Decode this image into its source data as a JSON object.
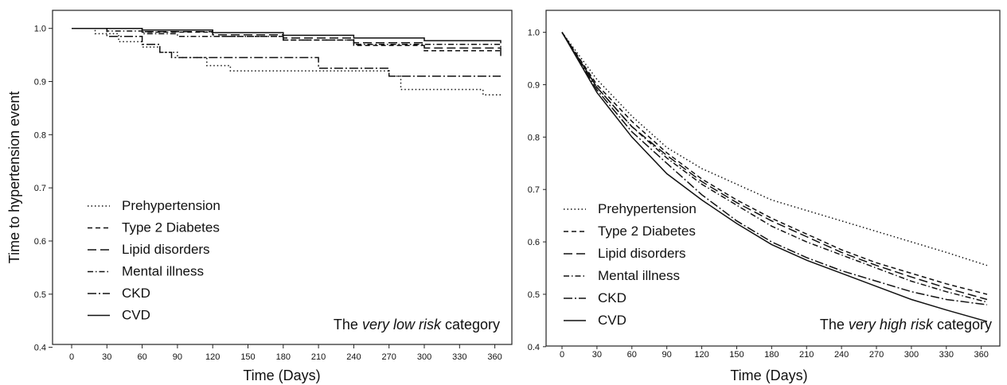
{
  "chart_data": [
    {
      "type": "line",
      "panel": "left",
      "ylabel": "Time to hypertension event",
      "xlabel": "Time (Days)",
      "xlim": [
        0,
        365
      ],
      "ylim": [
        0.38,
        1.01
      ],
      "x_ticks": [
        0,
        30,
        60,
        90,
        120,
        150,
        180,
        210,
        240,
        270,
        300,
        330,
        360
      ],
      "y_ticks": [
        0.4,
        0.5,
        0.6,
        0.7,
        0.8,
        0.9,
        1.0
      ],
      "y_tick_labels": [
        "0.4",
        "0.5",
        "0.6",
        "0.7",
        "0.8",
        "0.9",
        "1.0"
      ],
      "step": true,
      "legend_position": "bottom-left",
      "category_prefix": "The ",
      "category_emph": "very low risk",
      "category_suffix": " category",
      "series": [
        {
          "name": "Prehypertension",
          "dash": "dotted",
          "x": [
            0,
            20,
            40,
            60,
            75,
            90,
            115,
            135,
            270,
            280,
            350,
            365
          ],
          "y": [
            1.0,
            0.99,
            0.975,
            0.965,
            0.955,
            0.945,
            0.93,
            0.92,
            0.91,
            0.885,
            0.875,
            0.875
          ]
        },
        {
          "name": "Type 2 Diabetes",
          "dash": "short-dash",
          "x": [
            0,
            60,
            120,
            180,
            240,
            300,
            365
          ],
          "y": [
            1.0,
            0.993,
            0.985,
            0.978,
            0.968,
            0.958,
            0.948
          ]
        },
        {
          "name": "Lipid disorders",
          "dash": "long-dash",
          "x": [
            0,
            60,
            120,
            180,
            240,
            300,
            365
          ],
          "y": [
            1.0,
            0.994,
            0.988,
            0.982,
            0.973,
            0.963,
            0.953
          ]
        },
        {
          "name": "Mental illness",
          "dash": "dot-dash",
          "x": [
            0,
            30,
            60,
            90,
            180,
            240,
            365
          ],
          "y": [
            1.0,
            0.995,
            0.99,
            0.985,
            0.978,
            0.97,
            0.962
          ]
        },
        {
          "name": "CKD",
          "dash": "long-dot-dash",
          "x": [
            0,
            30,
            60,
            75,
            85,
            200,
            210,
            270,
            365
          ],
          "y": [
            1.0,
            0.985,
            0.97,
            0.955,
            0.945,
            0.945,
            0.925,
            0.91,
            0.91
          ]
        },
        {
          "name": "CVD",
          "dash": "solid",
          "x": [
            0,
            60,
            120,
            180,
            240,
            300,
            365
          ],
          "y": [
            1.0,
            0.997,
            0.992,
            0.987,
            0.982,
            0.977,
            0.972
          ]
        }
      ]
    },
    {
      "type": "line",
      "panel": "right",
      "ylabel": "",
      "xlabel": "Time (Days)",
      "xlim": [
        0,
        365
      ],
      "ylim": [
        0.38,
        1.01
      ],
      "x_ticks": [
        0,
        30,
        60,
        90,
        120,
        150,
        180,
        210,
        240,
        270,
        300,
        330,
        360
      ],
      "y_ticks": [
        0.4,
        0.5,
        0.6,
        0.7,
        0.8,
        0.9,
        1.0
      ],
      "y_tick_labels": [
        "0.4",
        "0.5",
        "0.6",
        "0.7",
        "0.8",
        "0.9",
        "1.0"
      ],
      "step": false,
      "legend_position": "bottom-left",
      "category_prefix": "The ",
      "category_emph": "very high risk",
      "category_suffix": " category",
      "series": [
        {
          "name": "Prehypertension",
          "dash": "dotted",
          "x": [
            0,
            30,
            60,
            90,
            120,
            150,
            180,
            210,
            240,
            270,
            300,
            330,
            365
          ],
          "y": [
            1.0,
            0.91,
            0.84,
            0.78,
            0.74,
            0.71,
            0.68,
            0.66,
            0.64,
            0.62,
            0.6,
            0.58,
            0.555
          ]
        },
        {
          "name": "Type 2 Diabetes",
          "dash": "short-dash",
          "x": [
            0,
            30,
            60,
            90,
            120,
            150,
            180,
            210,
            240,
            270,
            300,
            330,
            365
          ],
          "y": [
            1.0,
            0.9,
            0.83,
            0.77,
            0.72,
            0.68,
            0.645,
            0.615,
            0.585,
            0.56,
            0.54,
            0.52,
            0.5
          ]
        },
        {
          "name": "Lipid disorders",
          "dash": "long-dash",
          "x": [
            0,
            30,
            60,
            90,
            120,
            150,
            180,
            210,
            240,
            270,
            300,
            330,
            365
          ],
          "y": [
            1.0,
            0.895,
            0.82,
            0.765,
            0.715,
            0.675,
            0.64,
            0.61,
            0.58,
            0.555,
            0.533,
            0.512,
            0.49
          ]
        },
        {
          "name": "Mental illness",
          "dash": "dot-dash",
          "x": [
            0,
            30,
            60,
            90,
            120,
            150,
            180,
            210,
            240,
            270,
            300,
            330,
            365
          ],
          "y": [
            1.0,
            0.895,
            0.82,
            0.76,
            0.71,
            0.67,
            0.63,
            0.6,
            0.575,
            0.55,
            0.525,
            0.505,
            0.485
          ]
        },
        {
          "name": "CKD",
          "dash": "long-dot-dash",
          "x": [
            0,
            30,
            60,
            90,
            120,
            150,
            180,
            210,
            240,
            270,
            300,
            330,
            365
          ],
          "y": [
            1.0,
            0.89,
            0.81,
            0.75,
            0.69,
            0.64,
            0.6,
            0.57,
            0.545,
            0.525,
            0.505,
            0.49,
            0.48
          ]
        },
        {
          "name": "CVD",
          "dash": "solid",
          "x": [
            0,
            30,
            60,
            90,
            120,
            150,
            180,
            210,
            240,
            270,
            300,
            330,
            365
          ],
          "y": [
            1.0,
            0.885,
            0.8,
            0.73,
            0.68,
            0.635,
            0.595,
            0.565,
            0.54,
            0.515,
            0.49,
            0.47,
            0.448
          ]
        }
      ]
    }
  ]
}
